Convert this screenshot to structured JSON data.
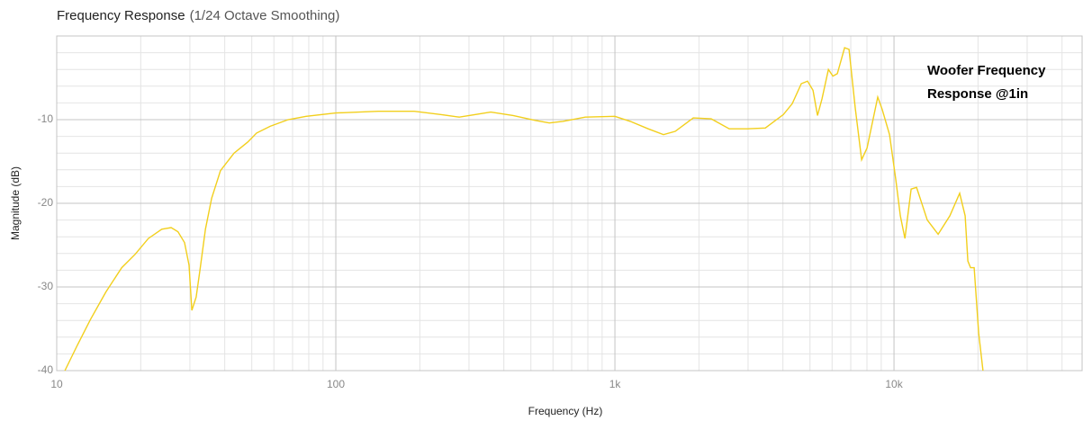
{
  "chart_data": {
    "type": "line",
    "title": "Frequency Response",
    "subtitle": "(1/24 Octave Smoothing)",
    "x_label": "Frequency (Hz)",
    "y_label": "Magnitude (dB)",
    "annotation": [
      "Woofer Frequency",
      "Response @1in"
    ],
    "x_log": true,
    "grid": true,
    "color": "#f2cf1d",
    "xlim": [
      10,
      47200
    ],
    "ylim": [
      -40,
      0
    ],
    "xticks": [
      10,
      100,
      {
        "value": 1000,
        "label": "1k"
      },
      {
        "value": 10000,
        "label": "10k"
      }
    ],
    "yticks": [
      -40,
      -30,
      -20,
      -10
    ],
    "x_minor_ticks": [
      20,
      30,
      40,
      50,
      60,
      70,
      80,
      90,
      200,
      300,
      400,
      500,
      600,
      700,
      800,
      900,
      2000,
      3000,
      4000,
      5000,
      6000,
      7000,
      8000,
      9000,
      20000,
      30000,
      40000
    ],
    "y_minor_ticks": [
      -38,
      -36,
      -34,
      -32,
      -28,
      -26,
      -24,
      -22,
      -18,
      -16,
      -14,
      -12,
      -8,
      -6,
      -4,
      -2
    ],
    "x": [
      10.7,
      11.8,
      13.2,
      15.0,
      17.1,
      19.1,
      21.3,
      23.8,
      25.7,
      27.2,
      28.7,
      29.8,
      30.5,
      31.6,
      32.6,
      34.1,
      35.9,
      38.6,
      43.2,
      48.3,
      52.0,
      58.2,
      67.5,
      78.3,
      100,
      142,
      191,
      239,
      277,
      359,
      432,
      520,
      582,
      651,
      783,
      1000,
      1135,
      1316,
      1493,
      1644,
      1909,
      2213,
      2570,
      2980,
      3458,
      4012,
      4318,
      4653,
      4900,
      5128,
      5321,
      5521,
      5821,
      6039,
      6266,
      6651,
      6901,
      7265,
      7656,
      8002,
      8747,
      9078,
      9636,
      10150,
      10540,
      10940,
      11520,
      12040,
      13160,
      14390,
      15850,
      17190,
      17980,
      18390,
      18800,
      19380,
      20100,
      20840
    ],
    "values": [
      -40,
      -37.1,
      -33.9,
      -30.6,
      -27.7,
      -26.1,
      -24.2,
      -23.1,
      -22.9,
      -23.4,
      -24.7,
      -27.4,
      -32.8,
      -31.2,
      -28.0,
      -23.1,
      -19.4,
      -16.1,
      -14.0,
      -12.7,
      -11.6,
      -10.8,
      -10.0,
      -9.6,
      -9.2,
      -9.0,
      -9.0,
      -9.4,
      -9.7,
      -9.1,
      -9.5,
      -10.1,
      -10.4,
      -10.2,
      -9.7,
      -9.6,
      -10.2,
      -11.1,
      -11.8,
      -11.4,
      -9.8,
      -9.9,
      -11.1,
      -11.1,
      -11.0,
      -9.4,
      -8.1,
      -5.7,
      -5.4,
      -6.5,
      -9.5,
      -7.5,
      -4.0,
      -4.8,
      -4.5,
      -1.4,
      -1.6,
      -8.6,
      -14.8,
      -13.4,
      -7.3,
      -8.8,
      -11.8,
      -17.2,
      -21.5,
      -24.2,
      -18.3,
      -18.1,
      -22.0,
      -23.7,
      -21.5,
      -18.8,
      -21.5,
      -26.9,
      -27.7,
      -27.7,
      -35.5,
      -40
    ]
  }
}
